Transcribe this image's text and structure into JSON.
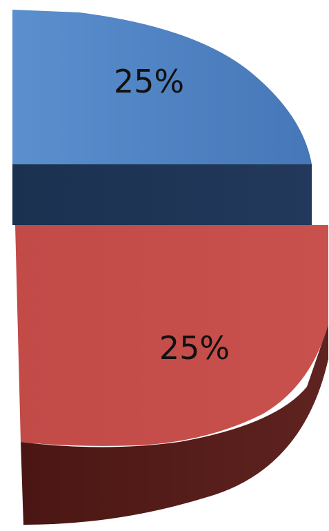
{
  "chart_data": {
    "type": "pie",
    "style": "3d-exploded-partial",
    "slices": [
      {
        "label": "25%",
        "value": 25,
        "color": "#4f81bd",
        "side_color": "#1f3864"
      },
      {
        "label": "25%",
        "value": 25,
        "color": "#c0504d",
        "side_color": "#5a1f1c"
      }
    ],
    "title": "",
    "legend": "none"
  }
}
